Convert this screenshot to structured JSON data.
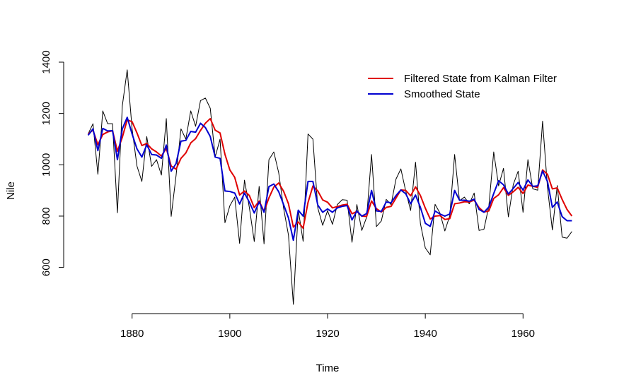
{
  "chart_data": {
    "type": "line",
    "title": "",
    "xlabel": "Time",
    "ylabel": "Nile",
    "xlim": [
      1866,
      1974
    ],
    "ylim": [
      420,
      1400
    ],
    "x_ticks": [
      1880,
      1900,
      1920,
      1940,
      1960
    ],
    "y_ticks": [
      600,
      800,
      1000,
      1200,
      1400
    ],
    "x_tick_labels": [
      "1880",
      "1900",
      "1920",
      "1940",
      "1960"
    ],
    "y_tick_labels": [
      "600",
      "800",
      "1000",
      "1200",
      "1400"
    ],
    "grid": false,
    "legend_position": "top-right",
    "x": [
      1871,
      1872,
      1873,
      1874,
      1875,
      1876,
      1877,
      1878,
      1879,
      1880,
      1881,
      1882,
      1883,
      1884,
      1885,
      1886,
      1887,
      1888,
      1889,
      1890,
      1891,
      1892,
      1893,
      1894,
      1895,
      1896,
      1897,
      1898,
      1899,
      1900,
      1901,
      1902,
      1903,
      1904,
      1905,
      1906,
      1907,
      1908,
      1909,
      1910,
      1911,
      1912,
      1913,
      1914,
      1915,
      1916,
      1917,
      1918,
      1919,
      1920,
      1921,
      1922,
      1923,
      1924,
      1925,
      1926,
      1927,
      1928,
      1929,
      1930,
      1931,
      1932,
      1933,
      1934,
      1935,
      1936,
      1937,
      1938,
      1939,
      1940,
      1941,
      1942,
      1943,
      1944,
      1945,
      1946,
      1947,
      1948,
      1949,
      1950,
      1951,
      1952,
      1953,
      1954,
      1955,
      1956,
      1957,
      1958,
      1959,
      1960,
      1961,
      1962,
      1963,
      1964,
      1965,
      1966,
      1967,
      1968,
      1969,
      1970
    ],
    "series": [
      {
        "name": "",
        "color": "#000000",
        "width": 1,
        "values": [
          1120,
          1160,
          963,
          1210,
          1160,
          1160,
          813,
          1230,
          1370,
          1140,
          995,
          935,
          1110,
          994,
          1020,
          960,
          1180,
          799,
          958,
          1140,
          1100,
          1210,
          1150,
          1250,
          1260,
          1220,
          1030,
          1100,
          774,
          840,
          874,
          694,
          940,
          833,
          701,
          916,
          692,
          1020,
          1050,
          969,
          831,
          726,
          456,
          824,
          702,
          1120,
          1100,
          832,
          764,
          821,
          768,
          845,
          864,
          862,
          698,
          845,
          744,
          796,
          1040,
          759,
          781,
          865,
          845,
          944,
          984,
          897,
          822,
          1010,
          771,
          676,
          649,
          846,
          812,
          742,
          801,
          1040,
          860,
          874,
          848,
          890,
          744,
          749,
          838,
          1050,
          918,
          986,
          797,
          923,
          975,
          815,
          1020,
          906,
          901,
          1170,
          912,
          746,
          919,
          718,
          714,
          740
        ]
      },
      {
        "name": "Filtered State from Kalman Filter",
        "color": "#e00000",
        "width": 2,
        "values": [
          1120,
          1135,
          1078,
          1118,
          1128,
          1133,
          1053,
          1107,
          1175,
          1168,
          1124,
          1075,
          1083,
          1062,
          1050,
          1034,
          1064,
          995,
          983,
          1025,
          1046,
          1085,
          1102,
          1134,
          1162,
          1180,
          1135,
          1124,
          1041,
          980,
          951,
          882,
          898,
          880,
          833,
          859,
          818,
          871,
          913,
          929,
          897,
          848,
          757,
          777,
          753,
          853,
          917,
          898,
          863,
          854,
          832,
          837,
          843,
          846,
          809,
          818,
          800,
          799,
          859,
          829,
          816,
          834,
          838,
          870,
          902,
          900,
          879,
          914,
          880,
          831,
          789,
          800,
          802,
          787,
          790,
          848,
          851,
          856,
          855,
          862,
          833,
          816,
          820,
          869,
          883,
          911,
          881,
          895,
          912,
          888,
          921,
          916,
          912,
          980,
          963,
          906,
          910,
          865,
          826,
          800
        ]
      },
      {
        "name": "Smoothed State",
        "color": "#0000d0",
        "width": 2,
        "values": [
          1115,
          1140,
          1055,
          1142,
          1132,
          1133,
          1020,
          1140,
          1185,
          1120,
          1062,
          1030,
          1078,
          1040,
          1038,
          1025,
          1077,
          975,
          1005,
          1092,
          1095,
          1130,
          1127,
          1162,
          1145,
          1110,
          1030,
          1025,
          898,
          896,
          890,
          847,
          890,
          854,
          812,
          855,
          815,
          915,
          925,
          895,
          845,
          793,
          706,
          823,
          800,
          935,
          935,
          843,
          815,
          828,
          815,
          832,
          838,
          841,
          785,
          820,
          800,
          810,
          900,
          820,
          818,
          855,
          852,
          880,
          902,
          887,
          848,
          882,
          834,
          772,
          760,
          820,
          808,
          800,
          808,
          900,
          862,
          862,
          858,
          866,
          826,
          815,
          835,
          888,
          938,
          922,
          886,
          908,
          931,
          901,
          941,
          916,
          918,
          976,
          935,
          834,
          855,
          798,
          782,
          782
        ]
      }
    ]
  }
}
